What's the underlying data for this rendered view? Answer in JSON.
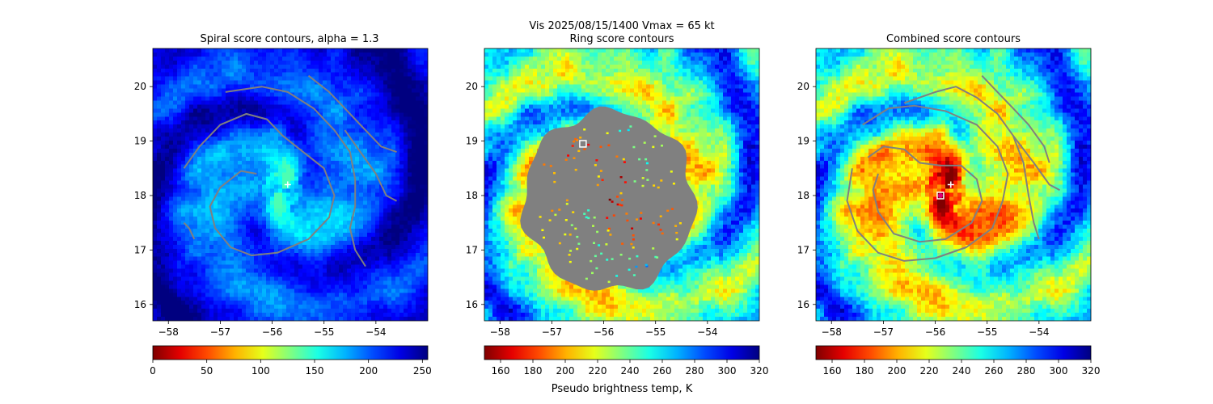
{
  "figure": {
    "suptitle": "Vis  2025/08/15/1400    Vmax = 65 kt",
    "colorbar_label": "Pseudo brightness temp, K"
  },
  "chart_data": [
    {
      "type": "heatmap",
      "title": "Spiral score contours, alpha =  1.3",
      "xlim": [
        -58.3,
        -53.0
      ],
      "ylim": [
        15.7,
        20.7
      ],
      "xticks": [
        -58,
        -57,
        -56,
        -55,
        -54
      ],
      "yticks": [
        16,
        17,
        18,
        19,
        20
      ],
      "colormap": "jet_r",
      "colorbar": {
        "range": [
          0,
          255
        ],
        "ticks": [
          0,
          50,
          100,
          150,
          200,
          250
        ]
      },
      "markers": [
        {
          "kind": "plus",
          "lon": -55.7,
          "lat": 18.2,
          "color": "#ffffff"
        }
      ],
      "contours": [
        {
          "color": "#808080",
          "points": [
            [
              -57.7,
              18.5
            ],
            [
              -57.4,
              18.9
            ],
            [
              -57.0,
              19.3
            ],
            [
              -56.5,
              19.5
            ],
            [
              -56.1,
              19.4
            ],
            [
              -55.8,
              19.1
            ],
            [
              -55.4,
              18.8
            ],
            [
              -55.0,
              18.5
            ],
            [
              -54.8,
              18.0
            ],
            [
              -54.9,
              17.6
            ],
            [
              -55.3,
              17.2
            ],
            [
              -55.9,
              16.95
            ],
            [
              -56.4,
              16.9
            ],
            [
              -56.8,
              17.05
            ],
            [
              -57.1,
              17.4
            ],
            [
              -57.2,
              17.8
            ],
            [
              -57.0,
              18.15
            ],
            [
              -56.6,
              18.45
            ],
            [
              -56.3,
              18.4
            ]
          ]
        },
        {
          "color": "#808080",
          "points": [
            [
              -56.9,
              19.9
            ],
            [
              -56.2,
              20.0
            ],
            [
              -55.7,
              19.9
            ],
            [
              -55.2,
              19.6
            ],
            [
              -54.8,
              19.2
            ],
            [
              -54.5,
              18.8
            ],
            [
              -54.4,
              18.3
            ],
            [
              -54.4,
              17.8
            ],
            [
              -54.5,
              17.4
            ],
            [
              -54.4,
              17.0
            ],
            [
              -54.2,
              16.7
            ]
          ]
        },
        {
          "color": "#808080",
          "points": [
            [
              -55.3,
              20.2
            ],
            [
              -54.9,
              19.9
            ],
            [
              -54.6,
              19.6
            ],
            [
              -54.3,
              19.3
            ],
            [
              -53.9,
              18.9
            ],
            [
              -53.6,
              18.8
            ]
          ]
        },
        {
          "color": "#808080",
          "points": [
            [
              -54.6,
              19.2
            ],
            [
              -54.3,
              18.8
            ],
            [
              -54.0,
              18.4
            ],
            [
              -53.8,
              18.0
            ],
            [
              -53.6,
              17.9
            ]
          ]
        },
        {
          "color": "#808080",
          "points": [
            [
              -57.7,
              17.5
            ],
            [
              -57.6,
              17.4
            ],
            [
              -57.5,
              17.2
            ]
          ]
        }
      ]
    },
    {
      "type": "heatmap",
      "title": "Ring score contours",
      "xlim": [
        -58.3,
        -53.0
      ],
      "ylim": [
        15.7,
        20.7
      ],
      "xticks": [
        -58,
        -57,
        -56,
        -55,
        -54
      ],
      "yticks": [
        16,
        17,
        18,
        19,
        20
      ],
      "colormap": "jet_r",
      "colorbar": {
        "range": [
          150,
          320
        ],
        "ticks": [
          160,
          180,
          200,
          220,
          240,
          260,
          280,
          300,
          320
        ]
      },
      "markers": [
        {
          "kind": "square",
          "lon": -56.4,
          "lat": 18.95,
          "color": "#ffffff"
        }
      ],
      "ring_fill": {
        "color": "#808080",
        "center_lon": -55.9,
        "center_lat": 17.9,
        "radius_deg": 1.65
      }
    },
    {
      "type": "heatmap",
      "title": "Combined score contours",
      "xlim": [
        -58.3,
        -53.0
      ],
      "ylim": [
        15.7,
        20.7
      ],
      "xticks": [
        -58,
        -57,
        -56,
        -55,
        -54
      ],
      "yticks": [
        16,
        17,
        18,
        19,
        20
      ],
      "colormap": "jet_r",
      "colorbar": {
        "range": [
          150,
          320
        ],
        "ticks": [
          160,
          180,
          200,
          220,
          240,
          260,
          280,
          300,
          320
        ]
      },
      "markers": [
        {
          "kind": "plus",
          "lon": -55.7,
          "lat": 18.2,
          "color": "#ffffff"
        },
        {
          "kind": "square",
          "lon": -55.9,
          "lat": 18.0,
          "color": "#ffffff"
        },
        {
          "kind": "dot",
          "lon": -55.9,
          "lat": 18.0,
          "color": "#e0007a"
        }
      ],
      "contours": [
        {
          "color": "#808080",
          "points": [
            [
              -57.3,
              18.7
            ],
            [
              -57.0,
              18.9
            ],
            [
              -56.6,
              18.85
            ],
            [
              -56.3,
              18.6
            ],
            [
              -55.9,
              18.55
            ],
            [
              -55.5,
              18.55
            ],
            [
              -55.2,
              18.3
            ],
            [
              -55.1,
              17.9
            ],
            [
              -55.3,
              17.5
            ],
            [
              -55.8,
              17.2
            ],
            [
              -56.3,
              17.15
            ],
            [
              -56.8,
              17.3
            ],
            [
              -57.1,
              17.7
            ],
            [
              -57.2,
              18.1
            ],
            [
              -57.1,
              18.4
            ]
          ]
        },
        {
          "color": "#808080",
          "points": [
            [
              -57.4,
              19.3
            ],
            [
              -56.9,
              19.6
            ],
            [
              -56.4,
              19.65
            ],
            [
              -55.8,
              19.55
            ],
            [
              -55.2,
              19.3
            ],
            [
              -54.8,
              18.9
            ],
            [
              -54.6,
              18.4
            ],
            [
              -54.7,
              17.9
            ],
            [
              -54.9,
              17.4
            ],
            [
              -55.4,
              17.05
            ],
            [
              -56.0,
              16.85
            ],
            [
              -56.6,
              16.8
            ],
            [
              -57.1,
              16.95
            ],
            [
              -57.5,
              17.35
            ],
            [
              -57.7,
              17.9
            ],
            [
              -57.6,
              18.5
            ]
          ]
        },
        {
          "color": "#808080",
          "points": [
            [
              -56.6,
              19.7
            ],
            [
              -56.0,
              19.9
            ],
            [
              -55.6,
              20.0
            ],
            [
              -55.2,
              19.8
            ],
            [
              -54.8,
              19.5
            ],
            [
              -54.5,
              19.1
            ],
            [
              -54.3,
              18.6
            ],
            [
              -54.2,
              18.0
            ],
            [
              -54.1,
              17.5
            ],
            [
              -54.0,
              17.2
            ]
          ]
        },
        {
          "color": "#808080",
          "points": [
            [
              -55.1,
              20.2
            ],
            [
              -54.8,
              19.9
            ],
            [
              -54.5,
              19.6
            ],
            [
              -54.2,
              19.3
            ],
            [
              -53.9,
              18.9
            ],
            [
              -53.8,
              18.6
            ]
          ]
        },
        {
          "color": "#808080",
          "points": [
            [
              -54.5,
              19.1
            ],
            [
              -54.1,
              18.6
            ],
            [
              -53.8,
              18.2
            ],
            [
              -53.6,
              18.1
            ]
          ]
        }
      ]
    }
  ]
}
